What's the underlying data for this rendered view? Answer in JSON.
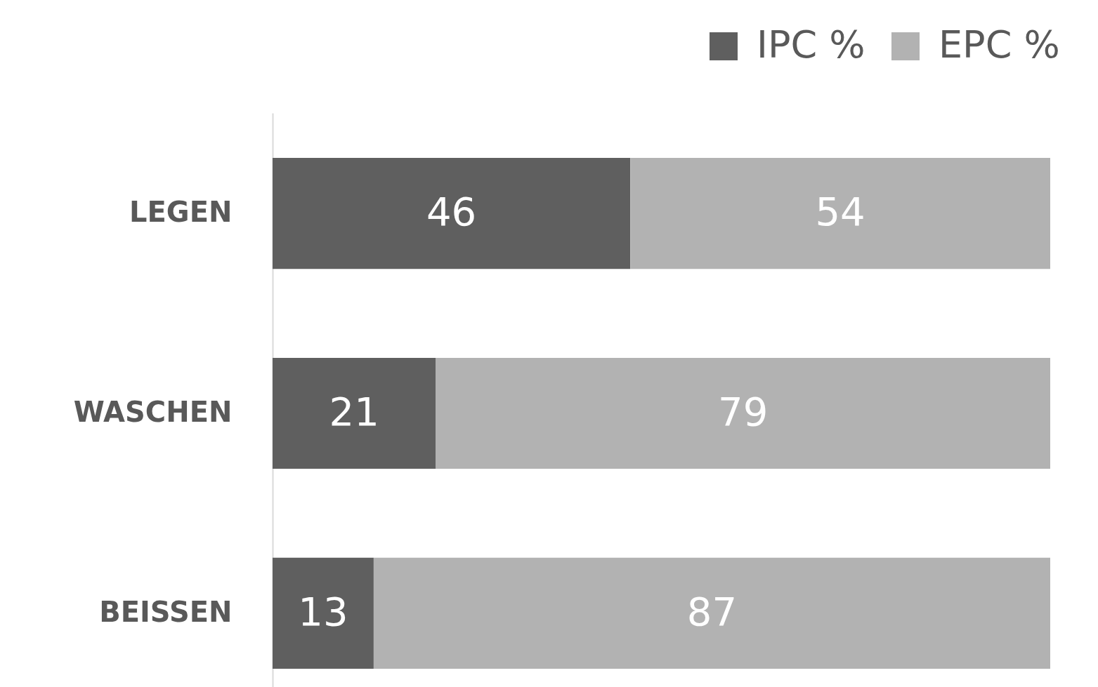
{
  "chart_data": {
    "type": "bar",
    "orientation": "horizontal",
    "stacked": true,
    "categories": [
      "LEGEN",
      "WASCHEN",
      "BEISSEN"
    ],
    "series": [
      {
        "name": "IPC %",
        "color": "#5f5f5f",
        "values": [
          46,
          21,
          13
        ]
      },
      {
        "name": "EPC %",
        "color": "#b2b2b2",
        "values": [
          54,
          79,
          87
        ]
      }
    ],
    "data_labels": true,
    "legend": "top right",
    "tick_labels": "y"
  }
}
